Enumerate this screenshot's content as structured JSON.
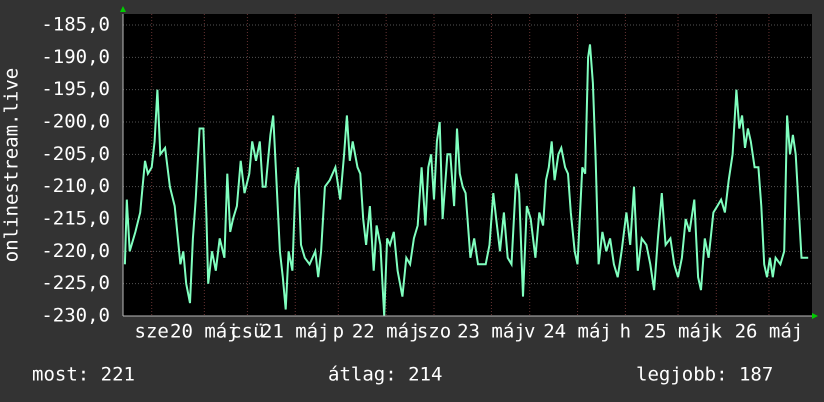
{
  "chart_data": {
    "type": "line",
    "y_label": "onlinestream.live",
    "ylim": [
      -230,
      -183.3
    ],
    "yticks": [
      {
        "value": -185,
        "label": "-185,0"
      },
      {
        "value": -190,
        "label": "-190,0"
      },
      {
        "value": -195,
        "label": "-195,0"
      },
      {
        "value": -200,
        "label": "-200,0"
      },
      {
        "value": -205,
        "label": "-205,0"
      },
      {
        "value": -210,
        "label": "-210,0"
      },
      {
        "value": -215,
        "label": "-215,0"
      },
      {
        "value": -220,
        "label": "-220,0"
      },
      {
        "value": -225,
        "label": "-225,0"
      },
      {
        "value": -230,
        "label": "-230,0"
      }
    ],
    "xlim": [
      0,
      7.2
    ],
    "xticks": [
      {
        "value": 0.3,
        "label": "sze"
      },
      {
        "value": 0.85,
        "label": "20 máj"
      },
      {
        "value": 1.3,
        "label": "csü"
      },
      {
        "value": 1.8,
        "label": "21 máj"
      },
      {
        "value": 2.25,
        "label": "p"
      },
      {
        "value": 2.75,
        "label": "22 máj"
      },
      {
        "value": 3.25,
        "label": "szo"
      },
      {
        "value": 3.85,
        "label": "23 máj"
      },
      {
        "value": 4.25,
        "label": "v"
      },
      {
        "value": 4.75,
        "label": "24 máj"
      },
      {
        "value": 5.25,
        "label": "h"
      },
      {
        "value": 5.8,
        "label": "25 máj"
      },
      {
        "value": 6.2,
        "label": "k"
      },
      {
        "value": 6.75,
        "label": "26 máj"
      }
    ],
    "grid": true,
    "series": [
      {
        "color": "#80ffbf",
        "x": [
          0.02,
          0.04,
          0.07,
          0.13,
          0.18,
          0.23,
          0.26,
          0.3,
          0.33,
          0.36,
          0.39,
          0.44,
          0.49,
          0.54,
          0.6,
          0.63,
          0.66,
          0.7,
          0.73,
          0.76,
          0.8,
          0.84,
          0.87,
          0.89,
          0.93,
          0.97,
          1.01,
          1.06,
          1.09,
          1.12,
          1.15,
          1.19,
          1.23,
          1.27,
          1.32,
          1.35,
          1.39,
          1.43,
          1.46,
          1.49,
          1.54,
          1.57,
          1.6,
          1.64,
          1.67,
          1.7,
          1.73,
          1.77,
          1.8,
          1.83,
          1.86,
          1.9,
          1.95,
          2.01,
          2.04,
          2.07,
          2.11,
          2.16,
          2.22,
          2.27,
          2.31,
          2.34,
          2.37,
          2.4,
          2.45,
          2.48,
          2.51,
          2.54,
          2.58,
          2.62,
          2.65,
          2.69,
          2.73,
          2.76,
          2.79,
          2.83,
          2.87,
          2.92,
          2.96,
          3.0,
          3.04,
          3.08,
          3.12,
          3.16,
          3.19,
          3.22,
          3.25,
          3.28,
          3.31,
          3.34,
          3.39,
          3.42,
          3.46,
          3.49,
          3.52,
          3.55,
          3.58,
          3.63,
          3.67,
          3.71,
          3.75,
          3.79,
          3.83,
          3.87,
          3.9,
          3.94,
          3.98,
          4.02,
          4.06,
          4.11,
          4.14,
          4.18,
          4.22,
          4.26,
          4.31,
          4.35,
          4.39,
          4.42,
          4.45,
          4.48,
          4.51,
          4.55,
          4.58,
          4.62,
          4.65,
          4.68,
          4.72,
          4.75,
          4.8,
          4.83,
          4.86,
          4.88,
          4.91,
          4.94,
          4.97,
          5.01,
          5.05,
          5.09,
          5.13,
          5.17,
          5.21,
          5.26,
          5.3,
          5.34,
          5.38,
          5.42,
          5.47,
          5.51,
          5.55,
          5.59,
          5.63,
          5.67,
          5.72,
          5.76,
          5.8,
          5.84,
          5.88,
          5.92,
          5.97,
          6.01,
          6.04,
          6.08,
          6.12,
          6.17,
          6.21,
          6.25,
          6.29,
          6.33,
          6.37,
          6.41,
          6.44,
          6.47,
          6.5,
          6.53,
          6.56,
          6.6,
          6.64,
          6.67,
          6.7,
          6.73,
          6.76,
          6.79,
          6.82,
          6.87,
          6.91,
          6.94,
          6.97,
          7.0,
          7.03,
          7.06,
          7.09,
          7.13,
          7.16
        ],
        "values": [
          -222,
          -212,
          -220,
          -217,
          -214,
          -206,
          -208,
          -207,
          -203,
          -195,
          -205,
          -204,
          -210,
          -213,
          -222,
          -220,
          -225,
          -228,
          -218,
          -212,
          -201,
          -201,
          -214,
          -225,
          -220,
          -223,
          -218,
          -221,
          -208,
          -217,
          -215,
          -213,
          -206,
          -211,
          -208,
          -203,
          -206,
          -203,
          -210,
          -210,
          -202,
          -199,
          -208,
          -220,
          -224,
          -229,
          -220,
          -223,
          -210,
          -207,
          -219,
          -221,
          -222,
          -220,
          -224,
          -220,
          -210,
          -209,
          -207,
          -212,
          -205,
          -199,
          -206,
          -203,
          -207,
          -208,
          -215,
          -219,
          -213,
          -223,
          -216,
          -219,
          -230,
          -218,
          -219,
          -217,
          -223,
          -227,
          -221,
          -222,
          -218,
          -216,
          -207,
          -216,
          -207,
          -205,
          -212,
          -203,
          -200,
          -215,
          -205,
          -205,
          -213,
          -201,
          -208,
          -210,
          -211,
          -221,
          -218,
          -222,
          -222,
          -222,
          -219,
          -211,
          -215,
          -220,
          -214,
          -221,
          -222,
          -208,
          -211,
          -227,
          -213,
          -215,
          -221,
          -214,
          -216,
          -209,
          -207,
          -203,
          -209,
          -205,
          -204,
          -207,
          -208,
          -214,
          -220,
          -222,
          -207,
          -208,
          -190,
          -188,
          -194,
          -206,
          -222,
          -217,
          -220,
          -218,
          -222,
          -224,
          -220,
          -214,
          -219,
          -210,
          -223,
          -218,
          -219,
          -222,
          -226,
          -218,
          -211,
          -219,
          -218,
          -222,
          -224,
          -221,
          -215,
          -217,
          -212,
          -224,
          -226,
          -218,
          -221,
          -214,
          -213,
          -212,
          -214,
          -209,
          -205,
          -195,
          -201,
          -199,
          -204,
          -201,
          -203,
          -207,
          -207,
          -213,
          -222,
          -224,
          -221,
          -224,
          -221,
          -222,
          -220,
          -199,
          -205,
          -202,
          -205,
          -213,
          -221,
          -221,
          -221
        ]
      }
    ],
    "stats": [
      "most: 221",
      "átlag: 214",
      "legjobb: 187"
    ]
  }
}
